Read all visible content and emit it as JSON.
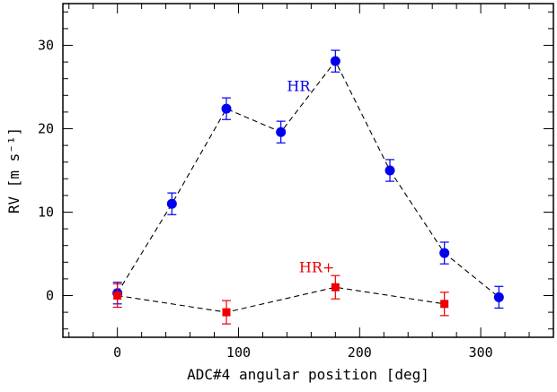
{
  "chart_data": {
    "type": "scatter",
    "xlabel": "ADC#4 angular position [deg]",
    "ylabel": "RV [m s⁻¹]",
    "xlim": [
      -45,
      360
    ],
    "ylim": [
      -5,
      35
    ],
    "x_ticks": [
      0,
      100,
      200,
      300
    ],
    "y_ticks": [
      0,
      10,
      20,
      30
    ],
    "grid": false,
    "series": [
      {
        "name": "HR",
        "color": "#0000ee",
        "marker": "circle",
        "line": "dashed",
        "points": [
          {
            "x": 0,
            "y": 0.3,
            "err": 1.3
          },
          {
            "x": 45,
            "y": 11.0,
            "err": 1.3
          },
          {
            "x": 90,
            "y": 22.4,
            "err": 1.3
          },
          {
            "x": 135,
            "y": 19.6,
            "err": 1.3
          },
          {
            "x": 180,
            "y": 28.1,
            "err": 1.3
          },
          {
            "x": 225,
            "y": 15.0,
            "err": 1.3
          },
          {
            "x": 270,
            "y": 5.1,
            "err": 1.3
          },
          {
            "x": 315,
            "y": -0.2,
            "err": 1.3
          }
        ]
      },
      {
        "name": "HR+",
        "color": "#ee0000",
        "marker": "square",
        "line": "dashed",
        "points": [
          {
            "x": 0,
            "y": 0.0,
            "err": 1.4
          },
          {
            "x": 90,
            "y": -2.0,
            "err": 1.4
          },
          {
            "x": 180,
            "y": 1.0,
            "err": 1.4
          },
          {
            "x": 270,
            "y": -1.0,
            "err": 1.4
          }
        ]
      }
    ],
    "annotations": [
      {
        "text": "HR",
        "series": "HR",
        "x": 140,
        "y": 24.5
      },
      {
        "text": "HR+",
        "series": "HR+",
        "x": 150,
        "y": 2.8
      }
    ]
  }
}
